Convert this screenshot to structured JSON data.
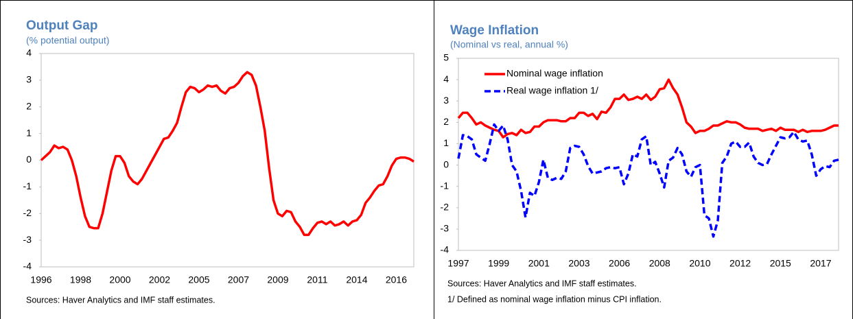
{
  "chart_data": [
    {
      "type": "line",
      "title": "Output Gap",
      "subtitle": "(% potential output)",
      "source": "Sources: Haver Analytics and IMF staff estimates.",
      "categories": [
        "1996",
        null,
        null,
        null,
        null,
        null,
        null,
        null,
        null,
        "1998",
        null,
        null,
        null,
        null,
        null,
        null,
        null,
        null,
        "2000",
        null,
        null,
        null,
        null,
        null,
        null,
        null,
        null,
        "2002",
        null,
        null,
        null,
        null,
        null,
        null,
        null,
        null,
        "2005",
        null,
        null,
        null,
        null,
        null,
        null,
        null,
        null,
        "2007",
        null,
        null,
        null,
        null,
        null,
        null,
        null,
        null,
        "2009",
        null,
        null,
        null,
        null,
        null,
        null,
        null,
        null,
        "2011",
        null,
        null,
        null,
        null,
        null,
        null,
        null,
        null,
        "2014",
        null,
        null,
        null,
        null,
        null,
        null,
        null,
        null,
        "2016",
        null,
        null,
        null,
        null
      ],
      "values": [
        0.0,
        0.15,
        0.3,
        0.55,
        0.45,
        0.5,
        0.4,
        0.0,
        -0.6,
        -1.4,
        -2.1,
        -2.5,
        -2.55,
        -2.55,
        -2.0,
        -1.2,
        -0.4,
        0.15,
        0.15,
        -0.1,
        -0.6,
        -0.8,
        -0.9,
        -0.7,
        -0.4,
        -0.1,
        0.2,
        0.5,
        0.8,
        0.85,
        1.1,
        1.4,
        2.0,
        2.55,
        2.75,
        2.7,
        2.55,
        2.65,
        2.8,
        2.75,
        2.8,
        2.6,
        2.5,
        2.7,
        2.75,
        2.9,
        3.15,
        3.3,
        3.2,
        2.8,
        2.0,
        1.1,
        -0.3,
        -1.5,
        -2.0,
        -2.1,
        -1.9,
        -1.95,
        -2.3,
        -2.5,
        -2.8,
        -2.8,
        -2.55,
        -2.35,
        -2.3,
        -2.4,
        -2.3,
        -2.45,
        -2.4,
        -2.3,
        -2.45,
        -2.3,
        -2.25,
        -2.05,
        -1.6,
        -1.4,
        -1.15,
        -0.95,
        -0.9,
        -0.6,
        -0.2,
        0.05,
        0.1,
        0.1,
        0.05,
        -0.05
      ],
      "color": "#ff0000",
      "ylim": [
        -4,
        4
      ],
      "yticks": [
        -4,
        -3,
        -2,
        -1,
        0,
        1,
        2,
        3,
        4
      ]
    },
    {
      "type": "line",
      "title": "Wage Inflation",
      "subtitle": "(Nominal vs real, annual %)",
      "source": "Sources: Haver Analytics and IMF staff estimates.",
      "note": "1/ Defined as nominal wage inflation minus CPI inflation.",
      "categories": [
        "1997",
        null,
        null,
        null,
        null,
        null,
        null,
        null,
        null,
        "1999",
        null,
        null,
        null,
        null,
        null,
        null,
        null,
        null,
        "2001",
        null,
        null,
        null,
        null,
        null,
        null,
        null,
        null,
        "2003",
        null,
        null,
        null,
        null,
        null,
        null,
        null,
        null,
        "2006",
        null,
        null,
        null,
        null,
        null,
        null,
        null,
        null,
        "2008",
        null,
        null,
        null,
        null,
        null,
        null,
        null,
        null,
        "2010",
        null,
        null,
        null,
        null,
        null,
        null,
        null,
        null,
        "2012",
        null,
        null,
        null,
        null,
        null,
        null,
        null,
        null,
        "2015",
        null,
        null,
        null,
        null,
        null,
        null,
        null,
        null,
        "2017",
        null,
        null,
        null,
        null
      ],
      "series": [
        {
          "name": "Nominal wage inflation",
          "color": "#ff0000",
          "style": "solid",
          "values": [
            2.2,
            2.45,
            2.45,
            2.2,
            1.9,
            2.0,
            1.85,
            1.75,
            1.65,
            1.6,
            1.3,
            1.45,
            1.5,
            1.4,
            1.65,
            1.5,
            1.55,
            1.8,
            1.8,
            2.0,
            2.1,
            2.1,
            2.1,
            2.05,
            2.05,
            2.2,
            2.2,
            2.45,
            2.45,
            2.3,
            2.4,
            2.15,
            2.5,
            2.45,
            2.7,
            3.1,
            3.1,
            3.3,
            3.05,
            3.1,
            3.2,
            3.1,
            3.3,
            3.05,
            3.2,
            3.55,
            3.6,
            4.0,
            3.6,
            3.3,
            2.7,
            2.0,
            1.8,
            1.5,
            1.6,
            1.6,
            1.7,
            1.85,
            1.85,
            1.95,
            2.05,
            2.0,
            2.0,
            1.9,
            1.75,
            1.7,
            1.7,
            1.7,
            1.6,
            1.65,
            1.7,
            1.6,
            1.75,
            1.65,
            1.65,
            1.65,
            1.55,
            1.65,
            1.55,
            1.6,
            1.6,
            1.6,
            1.65,
            1.75,
            1.85,
            1.85
          ]
        },
        {
          "name": "Real wage inflation 1/",
          "color": "#0000ff",
          "style": "dashed",
          "values": [
            0.3,
            1.4,
            1.35,
            1.2,
            0.5,
            0.35,
            0.2,
            1.0,
            1.9,
            1.6,
            1.85,
            1.2,
            0.0,
            -0.3,
            -1.2,
            -2.45,
            -1.3,
            -1.45,
            -0.8,
            0.25,
            -0.6,
            -0.7,
            -0.6,
            -0.65,
            -0.3,
            0.8,
            0.9,
            0.85,
            0.5,
            -0.05,
            -0.4,
            -0.35,
            -0.3,
            -0.15,
            -0.1,
            -0.15,
            -0.1,
            -0.9,
            -0.4,
            0.5,
            0.4,
            1.2,
            1.35,
            0.0,
            0.15,
            -0.4,
            -1.05,
            0.2,
            0.35,
            0.8,
            0.5,
            -0.3,
            -0.55,
            -0.1,
            0.0,
            -2.35,
            -2.5,
            -3.35,
            -2.6,
            0.1,
            0.4,
            1.0,
            1.1,
            0.85,
            0.85,
            1.05,
            0.4,
            0.1,
            0.0,
            0.05,
            0.5,
            0.9,
            1.3,
            1.25,
            1.3,
            1.55,
            1.2,
            1.1,
            1.15,
            0.5,
            -0.5,
            -0.2,
            -0.05,
            -0.1,
            0.2,
            0.25
          ]
        }
      ],
      "legend": "upper left",
      "ylim": [
        -4,
        5
      ],
      "yticks": [
        -4,
        -3,
        -2,
        -1,
        0,
        1,
        2,
        3,
        4,
        5
      ]
    }
  ]
}
